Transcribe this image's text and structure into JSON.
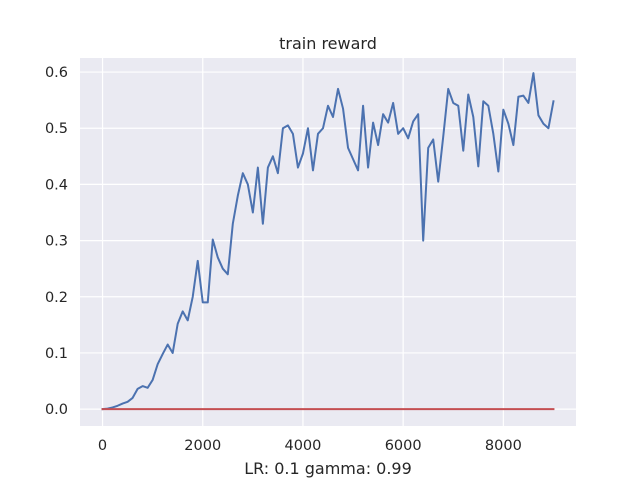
{
  "chart_data": {
    "type": "line",
    "title": "train reward",
    "xlabel": "LR: 0.1 gamma: 0.99",
    "ylabel": "",
    "xlim": [
      -450,
      9450
    ],
    "ylim": [
      -0.03,
      0.625
    ],
    "xticks": [
      0,
      2000,
      4000,
      6000,
      8000
    ],
    "xtick_labels": [
      "0",
      "2000",
      "4000",
      "6000",
      "8000"
    ],
    "yticks": [
      0.0,
      0.1,
      0.2,
      0.3,
      0.4,
      0.5,
      0.6
    ],
    "ytick_labels": [
      "0.0",
      "0.1",
      "0.2",
      "0.3",
      "0.4",
      "0.5",
      "0.6"
    ],
    "grid": true,
    "style": "seaborn-darkgrid",
    "colors": {
      "background": "#eaeaf2",
      "grid": "#ffffff",
      "series_reward": "#4c72b0",
      "series_baseline": "#c44e52"
    },
    "series": [
      {
        "color": "#4c72b0",
        "x": [
          0,
          100,
          200,
          300,
          400,
          500,
          600,
          700,
          800,
          900,
          1000,
          1100,
          1200,
          1300,
          1400,
          1500,
          1600,
          1700,
          1800,
          1900,
          2000,
          2100,
          2200,
          2300,
          2400,
          2500,
          2600,
          2700,
          2800,
          2900,
          3000,
          3100,
          3200,
          3300,
          3400,
          3500,
          3600,
          3700,
          3800,
          3900,
          4000,
          4100,
          4200,
          4300,
          4400,
          4500,
          4600,
          4700,
          4800,
          4900,
          5000,
          5100,
          5200,
          5300,
          5400,
          5500,
          5600,
          5700,
          5800,
          5900,
          6000,
          6100,
          6200,
          6300,
          6400,
          6500,
          6600,
          6700,
          6800,
          6900,
          7000,
          7100,
          7200,
          7300,
          7400,
          7500,
          7600,
          7700,
          7800,
          7900,
          8000,
          8100,
          8200,
          8300,
          8400,
          8500,
          8600,
          8700,
          8800,
          8900,
          9000
        ],
        "y": [
          0.0,
          0.001,
          0.003,
          0.006,
          0.01,
          0.013,
          0.02,
          0.036,
          0.041,
          0.038,
          0.052,
          0.08,
          0.098,
          0.115,
          0.1,
          0.152,
          0.174,
          0.158,
          0.2,
          0.264,
          0.19,
          0.19,
          0.302,
          0.27,
          0.25,
          0.24,
          0.33,
          0.38,
          0.42,
          0.4,
          0.35,
          0.43,
          0.33,
          0.43,
          0.45,
          0.42,
          0.5,
          0.505,
          0.49,
          0.43,
          0.455,
          0.5,
          0.425,
          0.49,
          0.5,
          0.54,
          0.52,
          0.57,
          0.535,
          0.465,
          0.445,
          0.425,
          0.54,
          0.43,
          0.51,
          0.47,
          0.525,
          0.51,
          0.545,
          0.49,
          0.5,
          0.482,
          0.512,
          0.525,
          0.3,
          0.465,
          0.48,
          0.405,
          0.485,
          0.57,
          0.545,
          0.54,
          0.46,
          0.56,
          0.52,
          0.432,
          0.548,
          0.54,
          0.49,
          0.423,
          0.533,
          0.508,
          0.47,
          0.556,
          0.558,
          0.545,
          0.598,
          0.523,
          0.508,
          0.5,
          0.548
        ]
      },
      {
        "color": "#c44e52",
        "x": [
          0,
          9000
        ],
        "y": [
          0.0,
          0.0
        ]
      }
    ]
  }
}
